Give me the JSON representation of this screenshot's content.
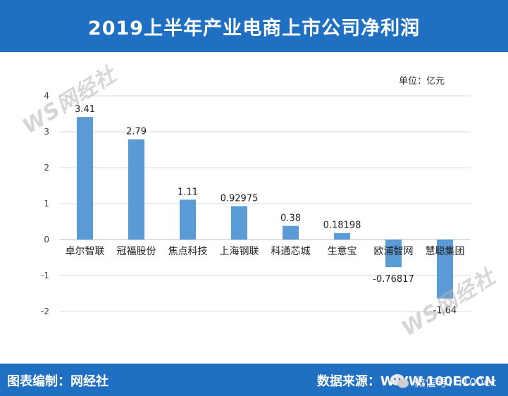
{
  "header": {
    "title": "2019上半年产业电商上市公司净利润"
  },
  "unit_label": "单位：亿元",
  "footer": {
    "left": "图表编制：网经社",
    "right": "数据来源：WWW.100EC.CN"
  },
  "watermarks": {
    "logo": "WS网经社",
    "sub": "WWW.100EC.CN",
    "wechat": "微信号：i100ec"
  },
  "chart_data": {
    "type": "bar",
    "categories": [
      "卓尔智联",
      "冠福股份",
      "焦点科技",
      "上海钢联",
      "科通芯城",
      "生意宝",
      "欧浦智网",
      "慧聪集团"
    ],
    "values": [
      3.41,
      2.79,
      1.11,
      0.92975,
      0.38,
      0.18198,
      -0.76817,
      -1.64
    ],
    "data_labels": [
      "3.41",
      "2.79",
      "1.11",
      "0.92975",
      "0.38",
      "0.18198",
      "-0.76817",
      "-1.64"
    ],
    "ylim": [
      -2,
      4
    ],
    "yticks": [
      4,
      3,
      2,
      1,
      0,
      -1,
      -2
    ],
    "bar_color": "#5b9bd5",
    "grid": true
  }
}
